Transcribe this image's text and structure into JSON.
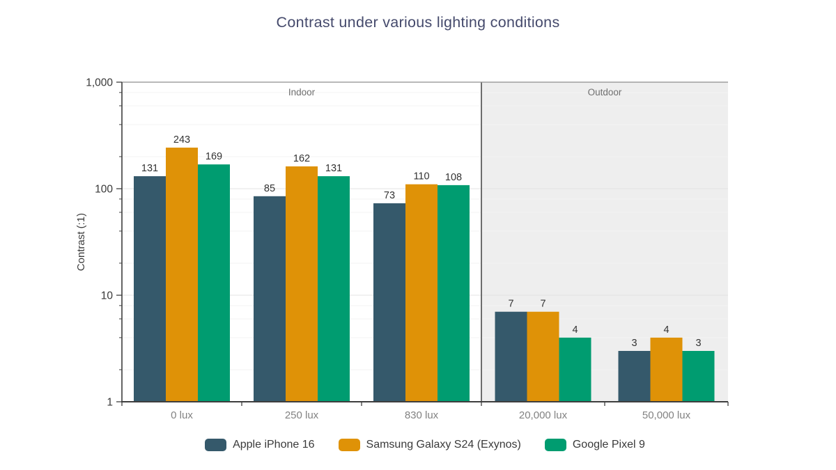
{
  "chart_data": {
    "type": "bar",
    "title": "Contrast under various lighting conditions",
    "ylabel": "Contrast (:1)",
    "xlabel": "",
    "y_scale": "log",
    "ylim": [
      1,
      1000
    ],
    "y_ticks": [
      "1",
      "10",
      "100",
      "1,000"
    ],
    "grid": true,
    "legend_position": "bottom",
    "categories": [
      "0 lux",
      "250 lux",
      "830 lux",
      "20,000 lux",
      "50,000 lux"
    ],
    "bands": [
      {
        "label": "Indoor",
        "categories": [
          0,
          1,
          2
        ],
        "fill": "#ffffff"
      },
      {
        "label": "Outdoor",
        "categories": [
          3,
          4
        ],
        "fill": "#eeeeee"
      }
    ],
    "series": [
      {
        "name": "Apple iPhone 16",
        "color": "#35596b",
        "values": [
          131,
          85,
          73,
          7,
          3
        ]
      },
      {
        "name": "Samsung Galaxy S24 (Exynos)",
        "color": "#df9207",
        "values": [
          243,
          162,
          110,
          7,
          4
        ]
      },
      {
        "name": "Google Pixel 9",
        "color": "#009c70",
        "values": [
          169,
          131,
          108,
          4,
          3
        ]
      }
    ]
  },
  "colors": {
    "title_text": "#454a6c",
    "axis_text": "#383838",
    "muted_text": "#828282",
    "band_label_text": "#6f6f6f",
    "outdoor_band_fill": "#eeeeee"
  }
}
